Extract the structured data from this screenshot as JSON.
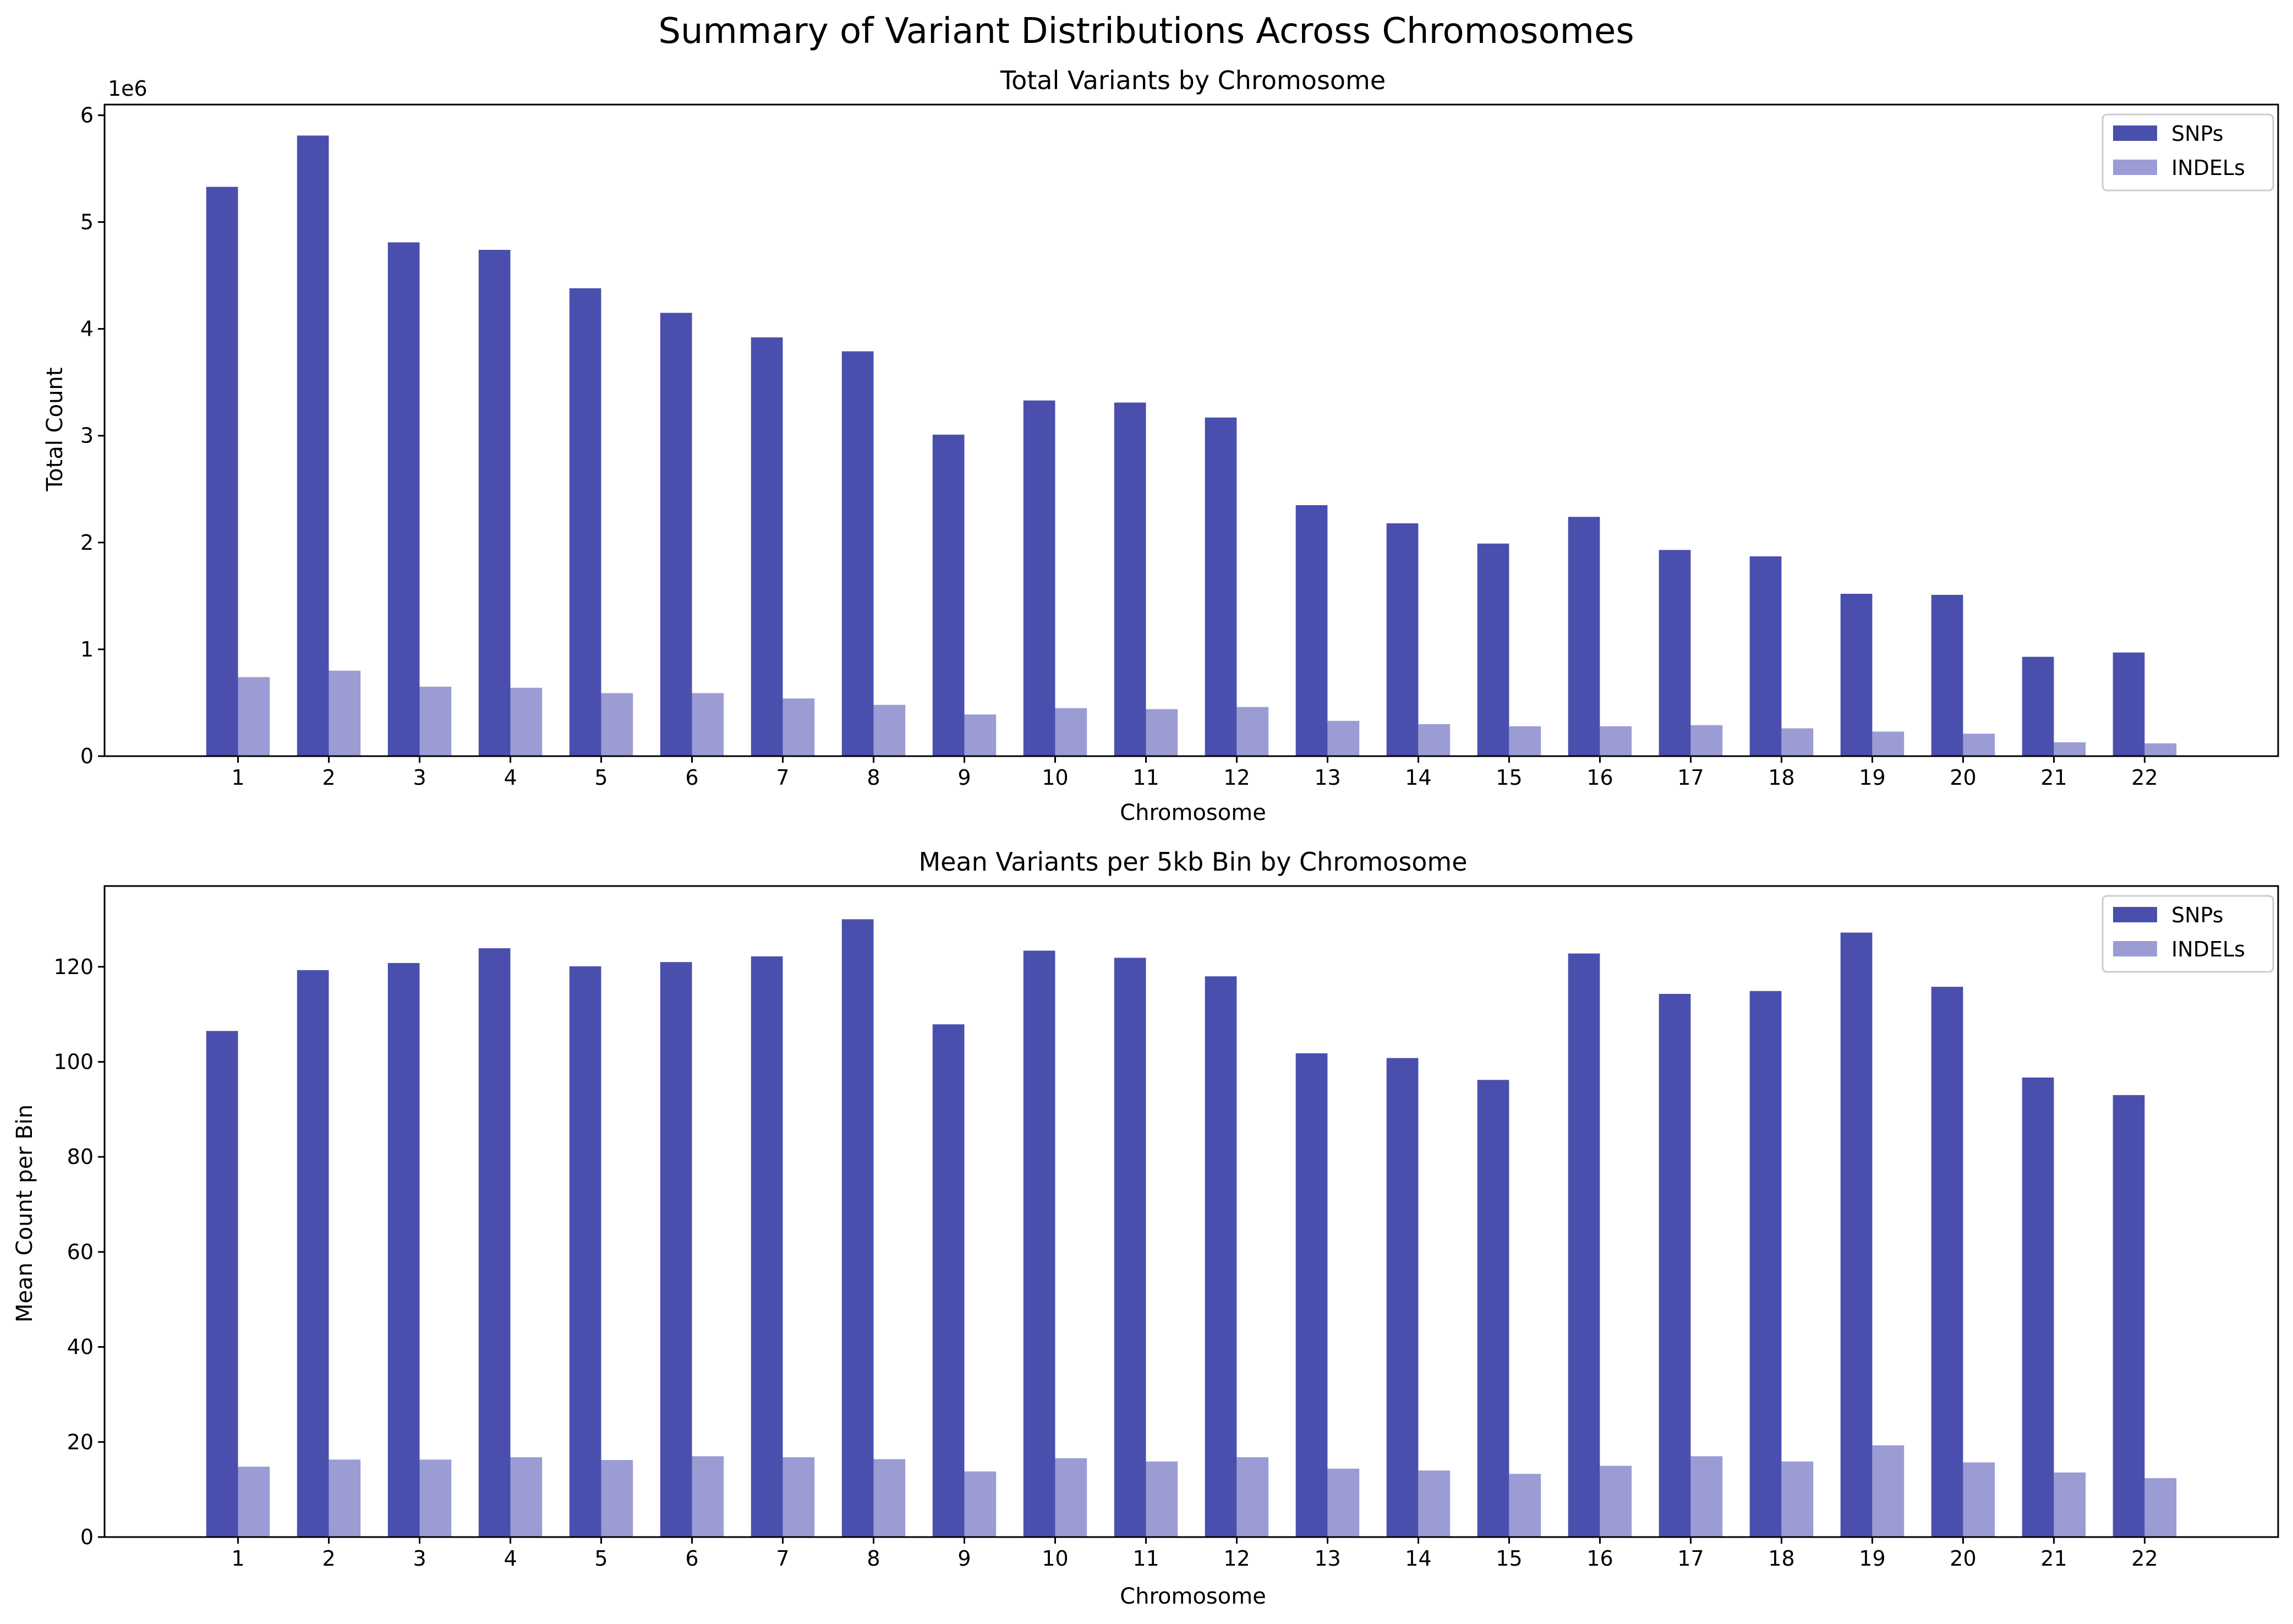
{
  "figure": {
    "suptitle": "Summary of Variant Distributions Across Chromosomes"
  },
  "colors": {
    "snps": "#4a4fad",
    "indels": "#9b9cd4"
  },
  "chart_data": [
    {
      "type": "bar",
      "title": "Total Variants by Chromosome",
      "xlabel": "Chromosome",
      "ylabel": "Total Count",
      "y_offset_label": "1e6",
      "ylim": [
        0,
        6100000
      ],
      "yticks": [
        0,
        1000000,
        2000000,
        3000000,
        4000000,
        5000000,
        6000000
      ],
      "ytick_labels": [
        "0",
        "1",
        "2",
        "3",
        "4",
        "5",
        "6"
      ],
      "categories": [
        "1",
        "2",
        "3",
        "4",
        "5",
        "6",
        "7",
        "8",
        "9",
        "10",
        "11",
        "12",
        "13",
        "14",
        "15",
        "16",
        "17",
        "18",
        "19",
        "20",
        "21",
        "22"
      ],
      "series": [
        {
          "name": "SNPs",
          "values": [
            5330000,
            5810000,
            4810000,
            4740000,
            4380000,
            4150000,
            3920000,
            3790000,
            3010000,
            3330000,
            3310000,
            3170000,
            2350000,
            2180000,
            1990000,
            2240000,
            1930000,
            1870000,
            1520000,
            1510000,
            930000,
            970000
          ]
        },
        {
          "name": "INDELs",
          "values": [
            740000,
            800000,
            650000,
            640000,
            590000,
            590000,
            540000,
            480000,
            390000,
            450000,
            440000,
            460000,
            330000,
            300000,
            280000,
            280000,
            290000,
            260000,
            230000,
            210000,
            130000,
            120000
          ]
        }
      ],
      "legend": "top-right",
      "grid": false
    },
    {
      "type": "bar",
      "title": "Mean Variants per 5kb Bin by Chromosome",
      "xlabel": "Chromosome",
      "ylabel": "Mean Count per Bin",
      "ylim": [
        0,
        137
      ],
      "yticks": [
        0,
        20,
        40,
        60,
        80,
        100,
        120
      ],
      "ytick_labels": [
        "0",
        "20",
        "40",
        "60",
        "80",
        "100",
        "120"
      ],
      "categories": [
        "1",
        "2",
        "3",
        "4",
        "5",
        "6",
        "7",
        "8",
        "9",
        "10",
        "11",
        "12",
        "13",
        "14",
        "15",
        "16",
        "17",
        "18",
        "19",
        "20",
        "21",
        "22"
      ],
      "series": [
        {
          "name": "SNPs",
          "values": [
            106.5,
            119.3,
            120.8,
            123.9,
            120.1,
            121.0,
            122.2,
            130.0,
            107.9,
            123.4,
            121.9,
            118.0,
            101.8,
            100.8,
            96.2,
            122.8,
            114.3,
            114.9,
            127.2,
            115.8,
            96.7,
            93.0
          ]
        },
        {
          "name": "INDELs",
          "values": [
            14.8,
            16.3,
            16.3,
            16.8,
            16.2,
            17.0,
            16.8,
            16.4,
            13.8,
            16.6,
            15.9,
            16.8,
            14.4,
            14.0,
            13.3,
            15.0,
            17.0,
            15.9,
            19.3,
            15.7,
            13.6,
            12.4
          ]
        }
      ],
      "legend": "top-right",
      "grid": false
    }
  ]
}
